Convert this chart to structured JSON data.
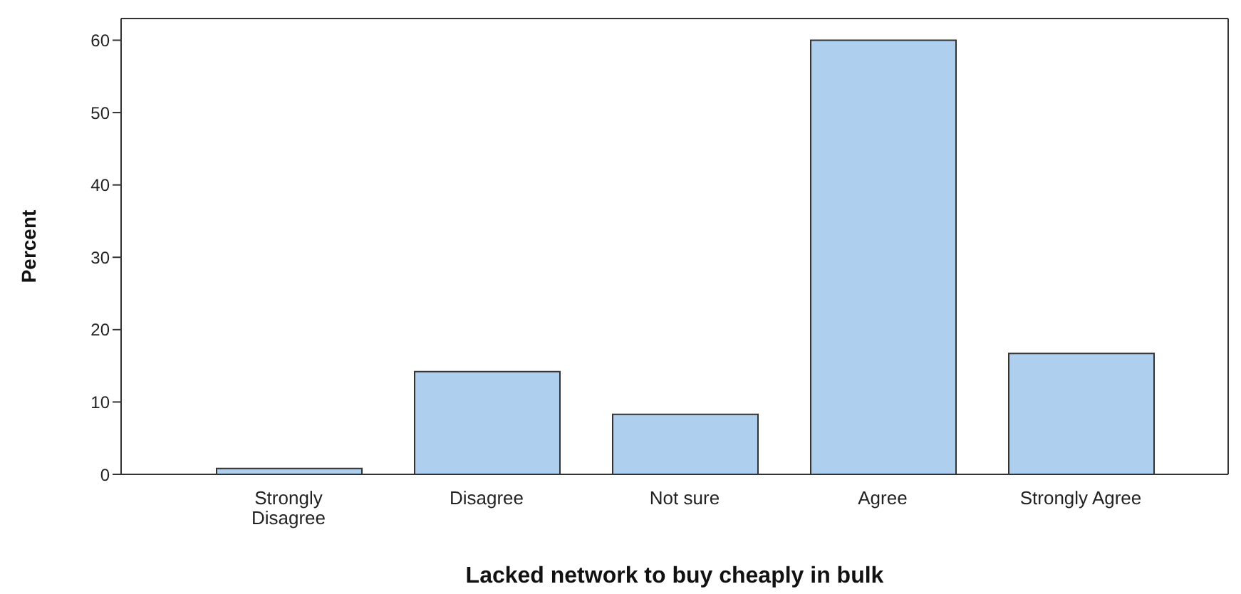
{
  "chart_data": {
    "type": "bar",
    "xlabel": "Lacked network to buy cheaply in bulk",
    "ylabel": "Percent",
    "categories": [
      "Strongly Disagree",
      "Disagree",
      "Not sure",
      "Agree",
      "Strongly Agree"
    ],
    "values": [
      0.8,
      14.2,
      8.3,
      60,
      16.7
    ],
    "color": "#aecfee",
    "ylim": [
      0,
      63
    ],
    "yticks": [
      0,
      10,
      20,
      30,
      40,
      50,
      60
    ],
    "grid": false,
    "legend": false
  }
}
